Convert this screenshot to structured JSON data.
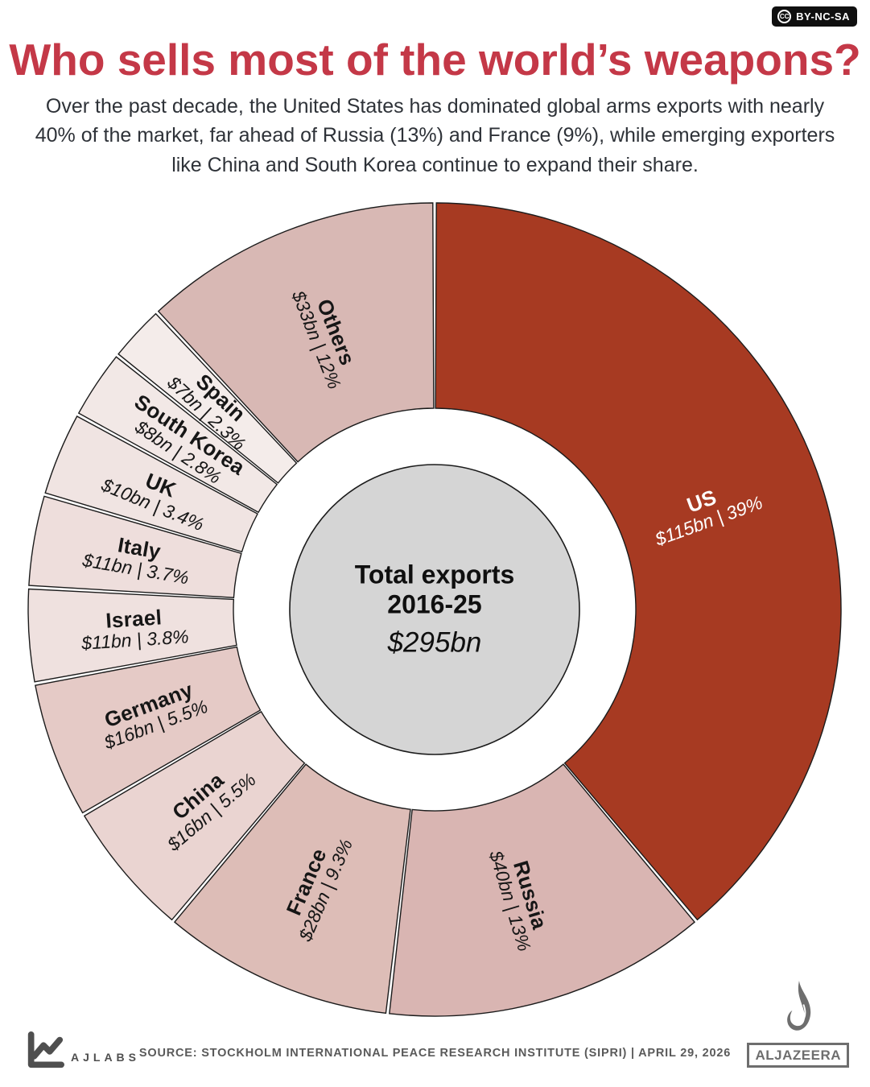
{
  "badge": {
    "cc": "CC",
    "label": "BY-NC-SA"
  },
  "header": {
    "title": "Who sells most of the world’s weapons?",
    "subtitle": "Over the past decade, the United States has dominated global arms exports with nearly 40% of the market, far ahead of Russia (13%) and France (9%), while emerging exporters like China and South Korea continue to expand their share."
  },
  "chart_data": {
    "type": "pie",
    "variant": "donut",
    "title": "Who sells most of the world’s weapons?",
    "center_label": {
      "line1": "Total exports",
      "line2": "2016-25",
      "total": "$295bn"
    },
    "legend_position": "on-slices",
    "stroke_color": "#1b1b1b",
    "center_fill": "#D5D5D5",
    "accent_color": "#C43847",
    "segments": [
      {
        "name": "US",
        "value_bn": 115,
        "share": 39,
        "value_label": "$115bn | 39%",
        "color": "#A73A22",
        "label_color": "#FFFFFF",
        "label_radius": 358
      },
      {
        "name": "Russia",
        "value_bn": 40,
        "share": 13,
        "value_label": "$40bn | 13%",
        "color": "#D9B5B2"
      },
      {
        "name": "France",
        "value_bn": 28,
        "share": 9.3,
        "value_label": "$28bn | 9.3%",
        "color": "#DDBDB7"
      },
      {
        "name": "China",
        "value_bn": 16,
        "share": 5.5,
        "value_label": "$16bn | 5.5%",
        "color": "#EAD4D1"
      },
      {
        "name": "Germany",
        "value_bn": 16,
        "share": 5.5,
        "value_label": "$16bn | 5.5%",
        "color": "#E5CAC6"
      },
      {
        "name": "Israel",
        "value_bn": 11,
        "share": 3.8,
        "value_label": "$11bn | 3.8%",
        "color": "#EFE1DF"
      },
      {
        "name": "Italy",
        "value_bn": 11,
        "share": 3.7,
        "value_label": "$11bn | 3.7%",
        "color": "#EEDEDC"
      },
      {
        "name": "UK",
        "value_bn": 10,
        "share": 3.4,
        "value_label": "$10bn | 3.4%",
        "color": "#F0E4E2"
      },
      {
        "name": "South Korea",
        "value_bn": 8,
        "share": 2.8,
        "value_label": "$8bn | 2.8%",
        "color": "#F2E8E6"
      },
      {
        "name": "Spain",
        "value_bn": 7,
        "share": 2.3,
        "value_label": "$7bn | 2.3%",
        "color": "#F4ECEA"
      },
      {
        "name": "Others",
        "value_bn": 33,
        "share": 12,
        "value_label": "$33bn | 12%",
        "color": "#D8B8B4",
        "label_radius": 366
      }
    ]
  },
  "footer": {
    "ajlabs_label": "AJLABS",
    "source": "SOURCE: STOCKHOLM INTERNATIONAL PEACE RESEARCH INSTITUTE (SIPRI)  |  APRIL 29, 2026",
    "aljazeera_label": "ALJAZEERA"
  }
}
